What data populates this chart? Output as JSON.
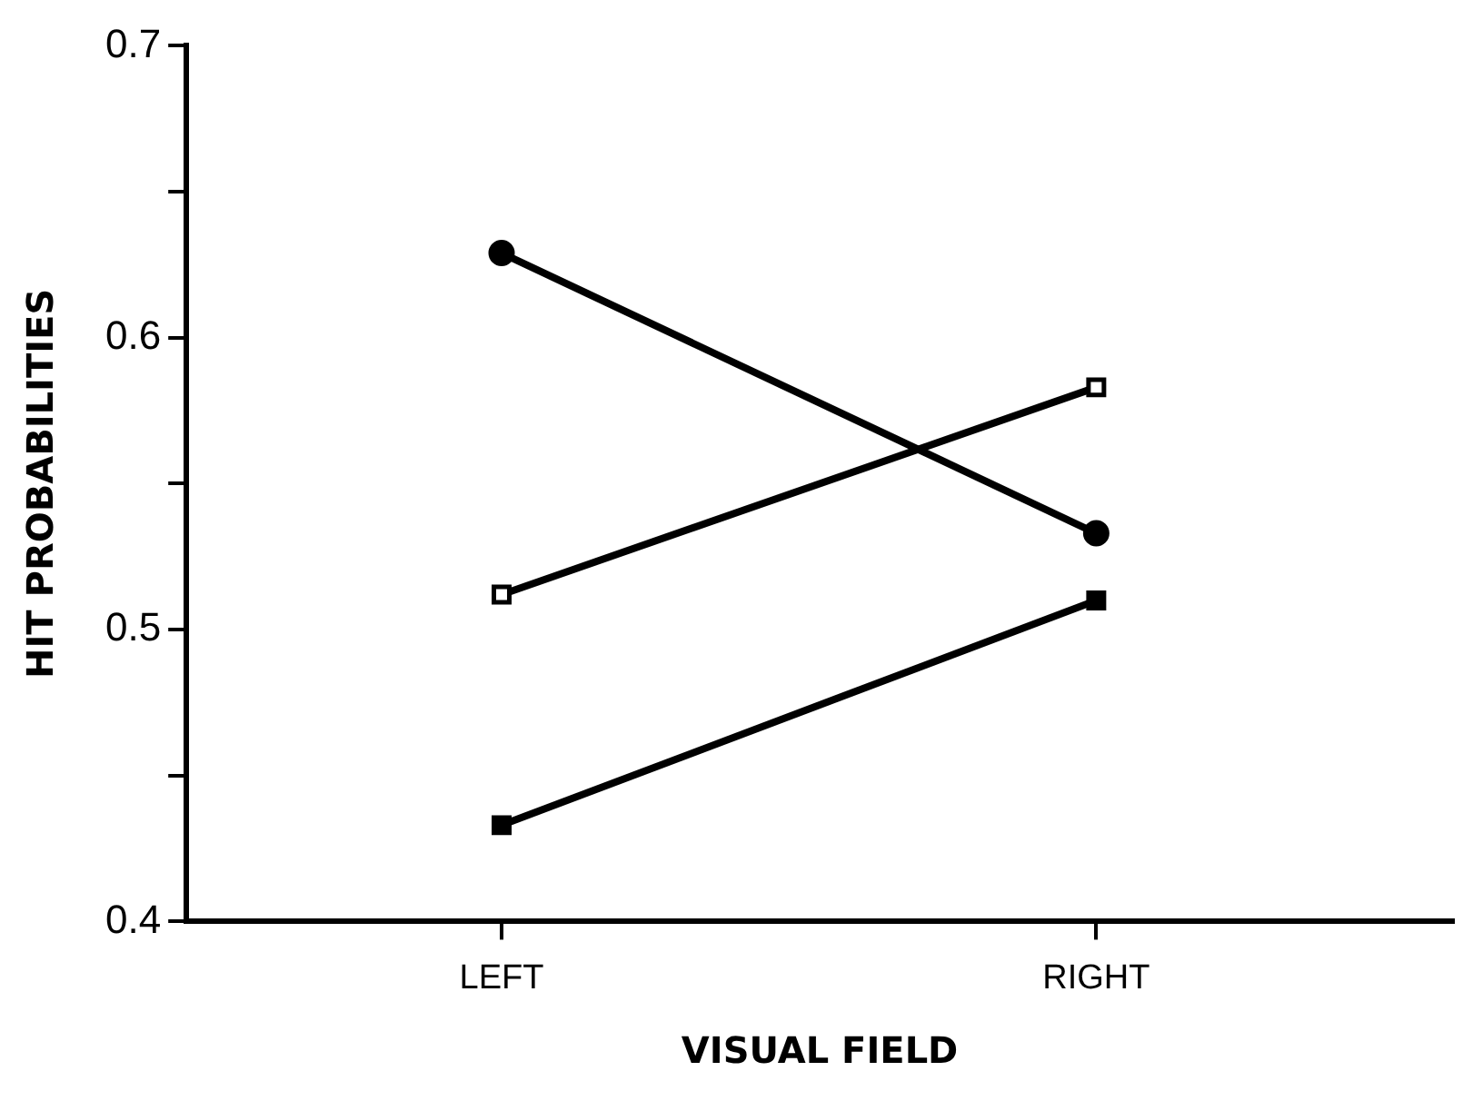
{
  "chart_data": {
    "type": "line",
    "xlabel": "VISUAL FIELD",
    "ylabel": "HIT PROBABILITIES",
    "categories": [
      "LEFT",
      "RIGHT"
    ],
    "series": [
      {
        "color": "#000000",
        "marker": "circle",
        "values": [
          0.629,
          0.533
        ]
      },
      {
        "color": "#000000",
        "marker": "square_open",
        "values": [
          0.512,
          0.583
        ]
      },
      {
        "color": "#000000",
        "marker": "square",
        "values": [
          0.433,
          0.51
        ]
      }
    ],
    "ylim": [
      0.4,
      0.7
    ],
    "yticks": [
      0.4,
      {
        "value": 0.45,
        "label": null
      },
      0.5,
      {
        "value": 0.55,
        "label": null
      },
      0.6,
      {
        "value": 0.65,
        "label": null
      },
      0.7
    ],
    "grid": false,
    "legend": false,
    "line_style": "solid"
  }
}
